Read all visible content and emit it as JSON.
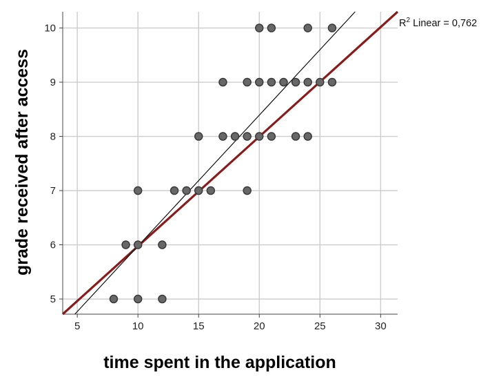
{
  "chart_data": {
    "type": "scatter",
    "title": "",
    "xlabel": "time spent in the application",
    "ylabel": "grade received after access",
    "xlim": [
      3.8,
      31.4
    ],
    "ylim": [
      4.72,
      10.3
    ],
    "x_ticks": [
      5,
      10,
      15,
      20,
      25,
      30
    ],
    "y_ticks": [
      5,
      6,
      7,
      8,
      9,
      10
    ],
    "grid": true,
    "legend": "none",
    "annotation": {
      "prefix": "R",
      "superscript": "2",
      "suffix": " Linear = 0,762"
    },
    "series": [
      {
        "points": [
          [
            8,
            5
          ],
          [
            10,
            5
          ],
          [
            12,
            5
          ],
          [
            9,
            6
          ],
          [
            10,
            6
          ],
          [
            12,
            6
          ],
          [
            10,
            7
          ],
          [
            13,
            7
          ],
          [
            14,
            7
          ],
          [
            15,
            7
          ],
          [
            16,
            7
          ],
          [
            19,
            7
          ],
          [
            15,
            8
          ],
          [
            17,
            8
          ],
          [
            18,
            8
          ],
          [
            19,
            8
          ],
          [
            20,
            8
          ],
          [
            21,
            8
          ],
          [
            23,
            8
          ],
          [
            24,
            8
          ],
          [
            17,
            9
          ],
          [
            19,
            9
          ],
          [
            20,
            9
          ],
          [
            21,
            9
          ],
          [
            22,
            9
          ],
          [
            23,
            9
          ],
          [
            24,
            9
          ],
          [
            25,
            9
          ],
          [
            26,
            9
          ],
          [
            20,
            10
          ],
          [
            21,
            10
          ],
          [
            24,
            10
          ],
          [
            26,
            10
          ]
        ]
      }
    ],
    "fit_lines": [
      {
        "kind": "linear-fit",
        "color": "#8b1a1a",
        "from": [
          3.8,
          4.72
        ],
        "to": [
          31.4,
          10.3
        ]
      },
      {
        "kind": "reference",
        "color": "#111111",
        "from": [
          4.8,
          4.72
        ],
        "to": [
          27.9,
          10.3
        ]
      }
    ],
    "colors": {
      "point_fill": "#686868",
      "point_stroke": "#3a3a3a",
      "grid": "#cccccc",
      "fit_line": "#8b1a1a",
      "reference_line": "#111111"
    }
  }
}
